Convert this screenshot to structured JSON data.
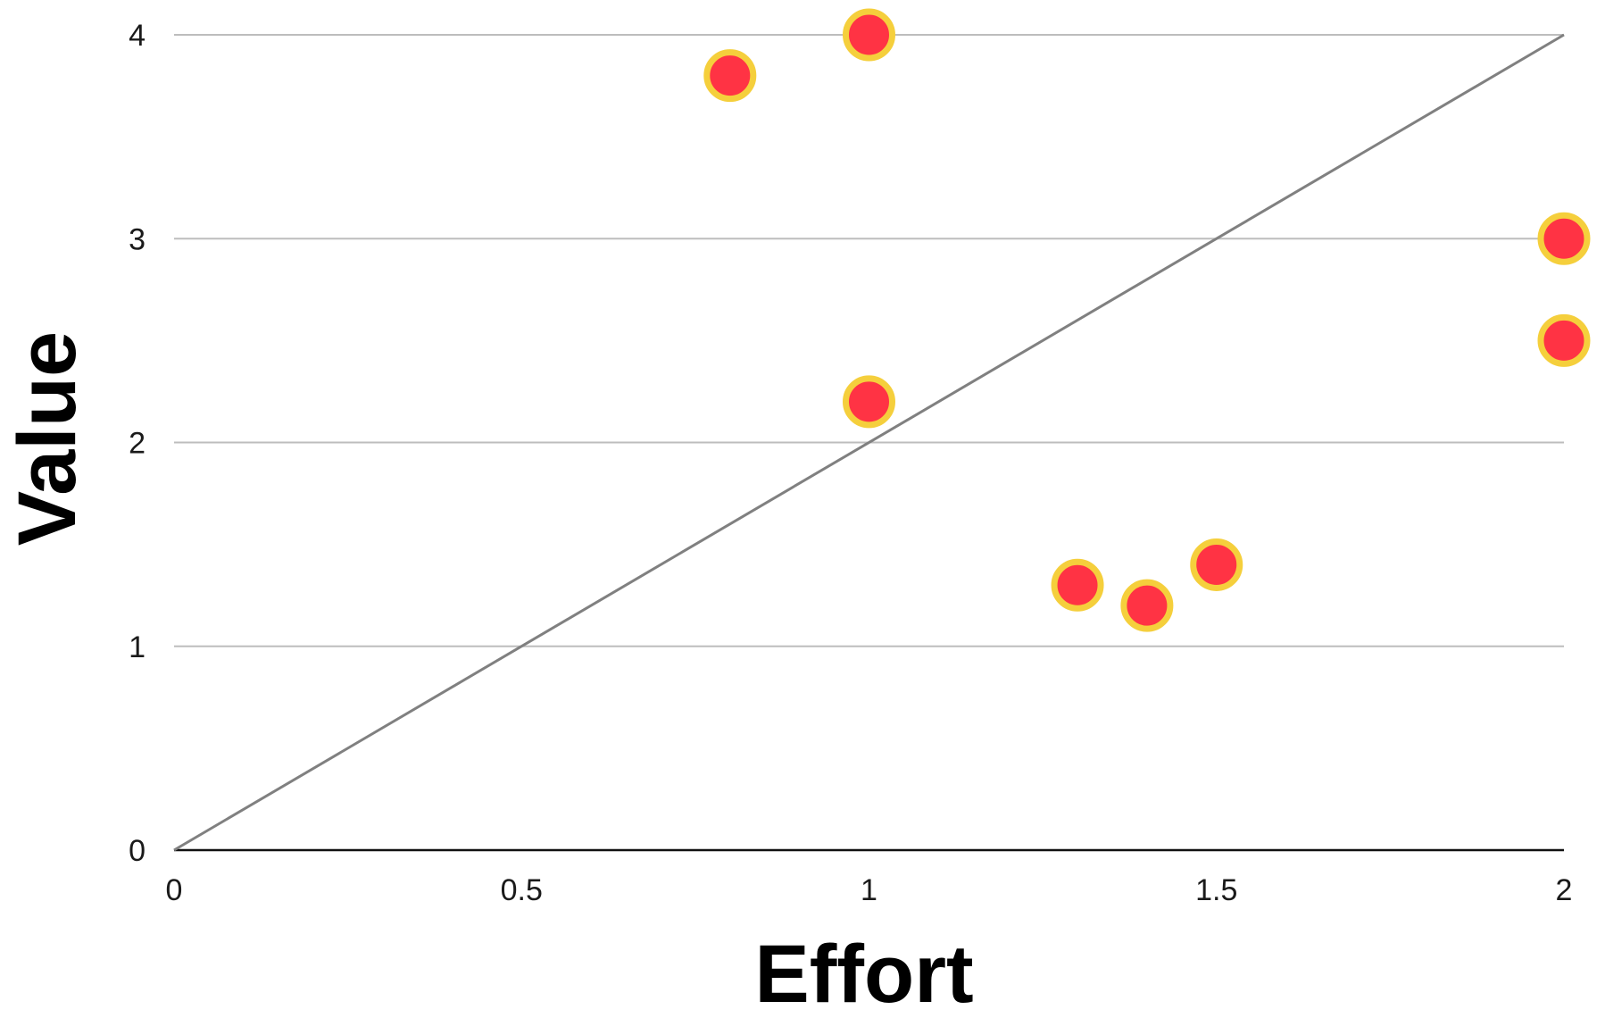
{
  "chart_data": {
    "type": "scatter",
    "title": "",
    "xlabel": "Effort",
    "ylabel": "Value",
    "xlim": [
      0,
      2
    ],
    "ylim": [
      0,
      4
    ],
    "x_ticks": [
      "0",
      "0.5",
      "1",
      "1.5",
      "2"
    ],
    "y_ticks": [
      "0",
      "1",
      "2",
      "3",
      "4"
    ],
    "grid": "horizontal",
    "legend": "none",
    "series": [
      {
        "points": [
          {
            "x": 0.8,
            "y": 3.8
          },
          {
            "x": 1.0,
            "y": 4.0
          },
          {
            "x": 1.0,
            "y": 2.2
          },
          {
            "x": 1.3,
            "y": 1.3
          },
          {
            "x": 1.4,
            "y": 1.2
          },
          {
            "x": 1.5,
            "y": 1.4
          },
          {
            "x": 2.0,
            "y": 3.0
          },
          {
            "x": 2.0,
            "y": 2.5
          }
        ],
        "fill_color": "#ff3344",
        "stroke_color": "#f5cf3c"
      }
    ],
    "reference_line": {
      "from": {
        "x": 0,
        "y": 0
      },
      "to": {
        "x": 2,
        "y": 4
      },
      "color": "#808080"
    },
    "colors": {
      "grid": "#bdbdbd",
      "axis": "#111111",
      "text": "#1a1a1a"
    }
  }
}
